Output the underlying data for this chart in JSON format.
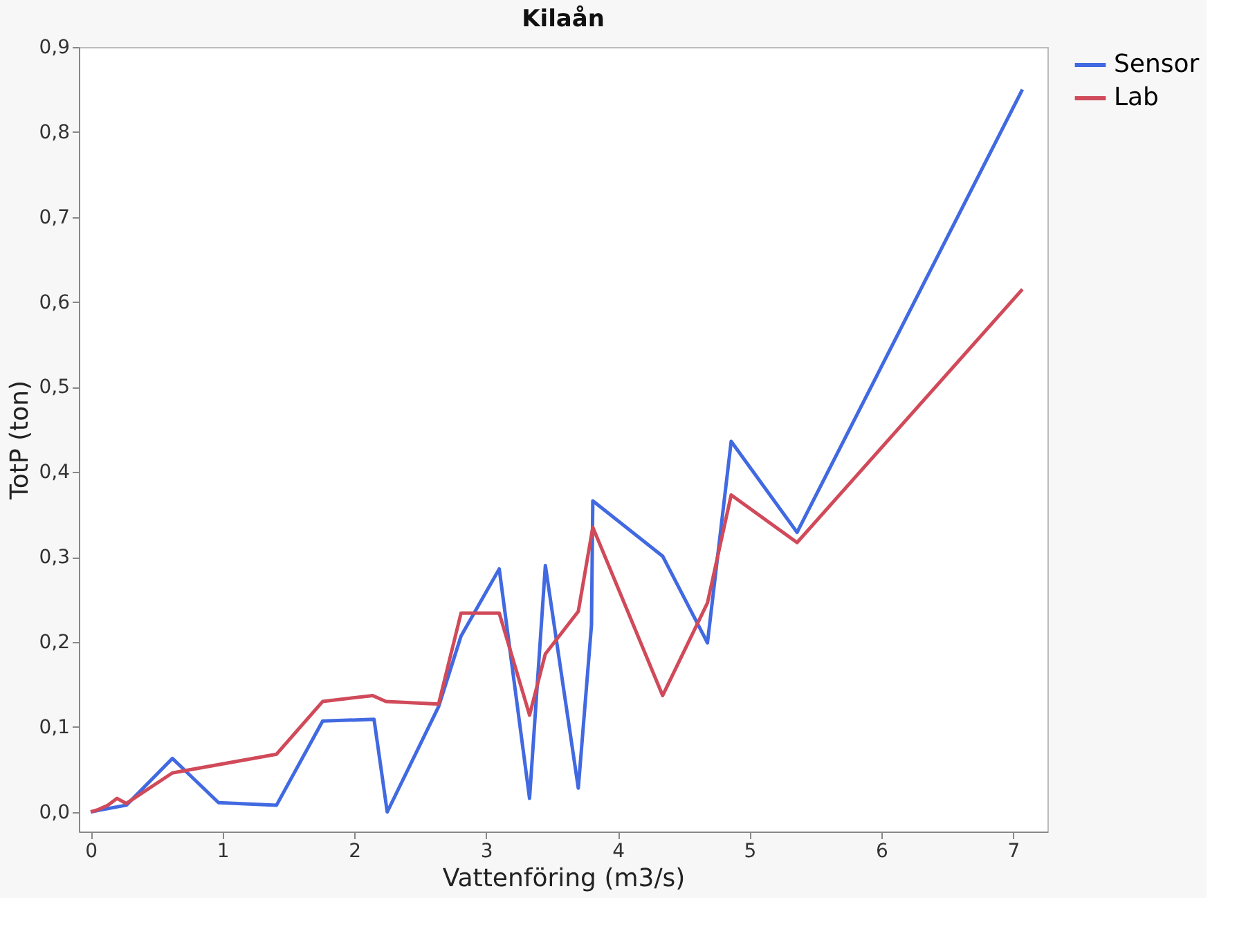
{
  "chart_data": {
    "type": "line",
    "title": "Kilaån",
    "xlabel": "Vattenföring (m3/s)",
    "ylabel": "TotP (ton)",
    "xlim": [
      -0.09,
      7.26
    ],
    "xticks": [
      0,
      1,
      2,
      3,
      4,
      5,
      6,
      7
    ],
    "ylim": [
      -0.023,
      0.9
    ],
    "yticks": [
      {
        "value": 0,
        "label": "0,0"
      },
      {
        "value": 0.1,
        "label": "0,1"
      },
      {
        "value": 0.2,
        "label": "0,2"
      },
      {
        "value": 0.3,
        "label": "0,3"
      },
      {
        "value": 0.4,
        "label": "0,4"
      },
      {
        "value": 0.5,
        "label": "0,5"
      },
      {
        "value": 0.6,
        "label": "0,6"
      },
      {
        "value": 0.7,
        "label": "0,7"
      },
      {
        "value": 0.8,
        "label": "0,8"
      },
      {
        "value": 0.9,
        "label": "0,9"
      }
    ],
    "grid": false,
    "legend": "top right",
    "marker": "none",
    "line_style": "solid",
    "series": [
      {
        "name": "Sensor",
        "color": "#4169e1",
        "x": [
          0.0,
          0.06,
          0.2,
          0.27,
          0.62,
          0.97,
          1.41,
          1.76,
          2.15,
          2.25,
          2.64,
          2.81,
          3.1,
          3.33,
          3.45,
          3.7,
          3.8,
          3.81,
          4.34,
          4.68,
          4.86,
          5.36,
          7.07
        ],
        "values": [
          0.0,
          0.002,
          0.006,
          0.008,
          0.063,
          0.011,
          0.008,
          0.107,
          0.109,
          0.0,
          0.124,
          0.207,
          0.286,
          0.016,
          0.29,
          0.028,
          0.22,
          0.366,
          0.301,
          0.199,
          0.436,
          0.329,
          0.85
        ]
      },
      {
        "name": "Lab",
        "color": "#d04a5a",
        "x": [
          0.0,
          0.06,
          0.13,
          0.2,
          0.27,
          0.62,
          1.41,
          1.76,
          2.14,
          2.24,
          2.64,
          2.81,
          3.1,
          3.33,
          3.45,
          3.7,
          3.81,
          4.34,
          4.68,
          4.86,
          5.36,
          7.07
        ],
        "values": [
          0.0,
          0.003,
          0.008,
          0.016,
          0.01,
          0.046,
          0.068,
          0.13,
          0.137,
          0.13,
          0.127,
          0.234,
          0.234,
          0.114,
          0.186,
          0.236,
          0.335,
          0.137,
          0.246,
          0.373,
          0.317,
          0.615
        ]
      }
    ]
  }
}
